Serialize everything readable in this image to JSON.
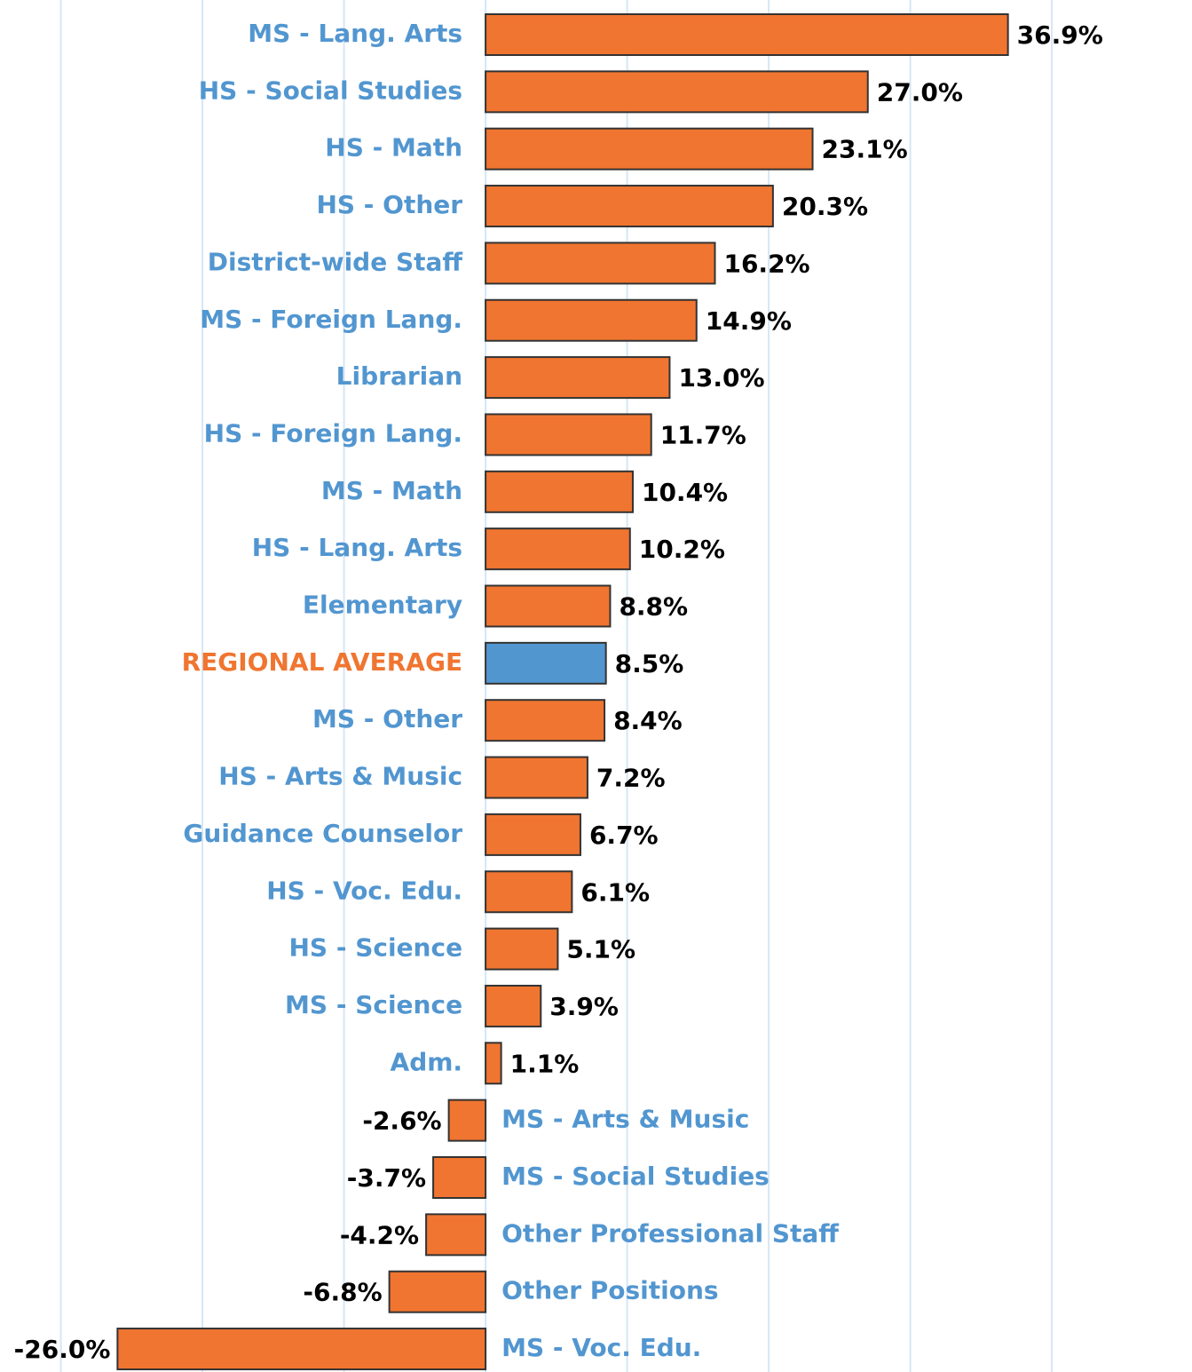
{
  "chart_data": {
    "type": "hbar",
    "categories": [
      "MS - Lang. Arts",
      "HS - Social Studies",
      "HS - Math",
      "HS - Other",
      "District-wide Staff",
      "MS - Foreign Lang.",
      "Librarian",
      "HS - Foreign Lang.",
      "MS - Math",
      "HS - Lang. Arts",
      "Elementary",
      "REGIONAL AVERAGE",
      "MS - Other",
      "HS - Arts & Music",
      "Guidance Counselor",
      "HS - Voc. Edu.",
      "HS - Science",
      "MS - Science",
      "Adm.",
      "MS - Arts & Music",
      "MS - Social Studies",
      "Other Professional Staff",
      "Other Positions",
      "MS - Voc. Edu."
    ],
    "values": [
      36.9,
      27.0,
      23.1,
      20.3,
      16.2,
      14.9,
      13.0,
      11.7,
      10.4,
      10.2,
      8.8,
      8.5,
      8.4,
      7.2,
      6.7,
      6.1,
      5.1,
      3.9,
      1.1,
      -2.6,
      -3.7,
      -4.2,
      -6.8,
      -26.0
    ],
    "value_labels": [
      "36.9%",
      "27.0%",
      "23.1%",
      "20.3%",
      "16.2%",
      "14.9%",
      "13.0%",
      "11.7%",
      "10.4%",
      "10.2%",
      "8.8%",
      "8.5%",
      "8.4%",
      "7.2%",
      "6.7%",
      "6.1%",
      "5.1%",
      "3.9%",
      "1.1%",
      "-2.6%",
      "-3.7%",
      "-4.2%",
      "-6.8%",
      "-26.0%"
    ],
    "colors": [
      "#f07530",
      "#f07530",
      "#f07530",
      "#f07530",
      "#f07530",
      "#f07530",
      "#f07530",
      "#f07530",
      "#f07530",
      "#f07530",
      "#f07530",
      "#5296d0",
      "#f07530",
      "#f07530",
      "#f07530",
      "#f07530",
      "#f07530",
      "#f07530",
      "#f07530",
      "#f07530",
      "#f07530",
      "#f07530",
      "#f07530",
      "#f07530"
    ],
    "label_colors": [
      "#5296d0",
      "#5296d0",
      "#5296d0",
      "#5296d0",
      "#5296d0",
      "#5296d0",
      "#5296d0",
      "#5296d0",
      "#5296d0",
      "#5296d0",
      "#5296d0",
      "#f07530",
      "#5296d0",
      "#5296d0",
      "#5296d0",
      "#5296d0",
      "#5296d0",
      "#5296d0",
      "#5296d0",
      "#5296d0",
      "#5296d0",
      "#5296d0",
      "#5296d0",
      "#5296d0"
    ],
    "xlim": [
      -34.3,
      49.9
    ],
    "xticks": [
      -30,
      -20,
      -10,
      0,
      10,
      20,
      30,
      40
    ],
    "grid": true
  }
}
